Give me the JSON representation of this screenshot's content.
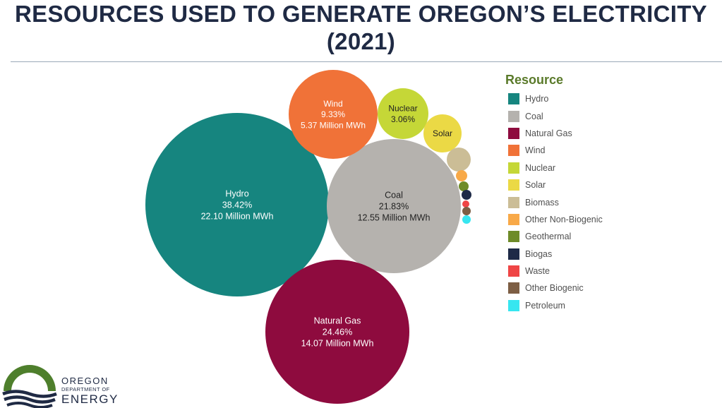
{
  "header": {
    "title_line1": "RESOURCES USED TO GENERATE OREGON’S ELECTRICITY",
    "title_line2": "(2021)"
  },
  "logo": {
    "line1": "OREGON",
    "line2": "DEPARTMENT OF",
    "line3": "ENERGY",
    "colors": {
      "green": "#4e7f2c",
      "navy": "#1f2a44"
    }
  },
  "chart_data": {
    "type": "bubble",
    "title": "RESOURCES USED TO GENERATE OREGON’S ELECTRICITY (2021)",
    "legend_title": "Resource",
    "legend_position": "right",
    "series": [
      {
        "name": "Hydro",
        "percent": "38.42%",
        "share": 38.42,
        "mwh": "22.10 Million MWh",
        "color": "#16857f",
        "label_lines": [
          "Hydro",
          "38.42%",
          "22.10 Million MWh"
        ]
      },
      {
        "name": "Coal",
        "percent": "21.83%",
        "share": 21.83,
        "mwh": "12.55 Million MWh",
        "color": "#b5b2ae",
        "label_lines": [
          "Coal",
          "21.83%",
          "12.55 Million MWh"
        ]
      },
      {
        "name": "Natural Gas",
        "percent": "24.46%",
        "share": 24.46,
        "mwh": "14.07 Million MWh",
        "color": "#8e0b3e",
        "label_lines": [
          "Natural Gas",
          "24.46%",
          "14.07 Million MWh"
        ]
      },
      {
        "name": "Wind",
        "percent": "9.33%",
        "share": 9.33,
        "mwh": "5.37 Million MWh",
        "color": "#f07238",
        "label_lines": [
          "Wind",
          "9.33%",
          "5.37 Million MWh"
        ]
      },
      {
        "name": "Nuclear",
        "percent": "3.06%",
        "share": 3.06,
        "color": "#c5d737",
        "label_lines": [
          "Nuclear",
          "3.06%"
        ]
      },
      {
        "name": "Solar",
        "share": 1.5,
        "color": "#ebd945",
        "label_lines": [
          "Solar"
        ]
      },
      {
        "name": "Biomass",
        "share": 0.68,
        "color": "#cbbd96",
        "label_lines": []
      },
      {
        "name": "Other Non-Biogenic",
        "share": 0.2,
        "color": "#f8a948",
        "label_lines": []
      },
      {
        "name": "Geothermal",
        "share": 0.15,
        "color": "#6e8b28",
        "label_lines": []
      },
      {
        "name": "Biogas",
        "share": 0.17,
        "color": "#1e2a47",
        "label_lines": []
      },
      {
        "name": "Waste",
        "share": 0.07,
        "color": "#ef4545",
        "label_lines": []
      },
      {
        "name": "Other Biogenic",
        "share": 0.08,
        "color": "#7d5e44",
        "label_lines": []
      },
      {
        "name": "Petroleum",
        "share": 0.07,
        "color": "#37e6f0",
        "label_lines": []
      }
    ]
  }
}
